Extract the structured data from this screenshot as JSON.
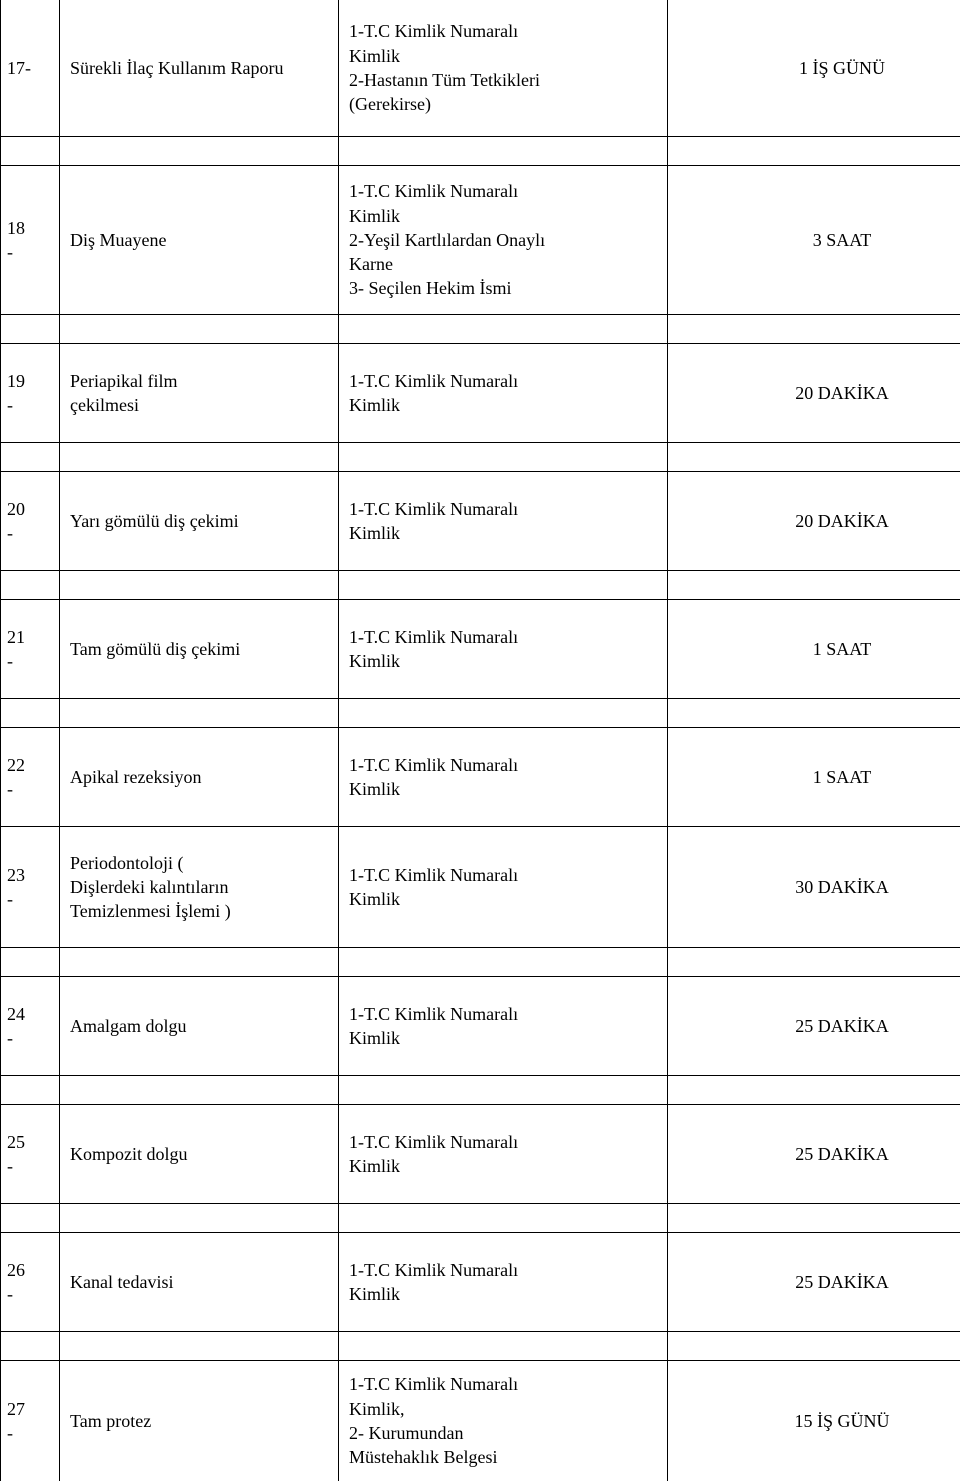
{
  "rows": [
    {
      "num": "17-",
      "name": "Sürekli İlaç Kullanım Raporu",
      "req": "1-T.C Kimlik Numaralı\nKimlik\n2-Hastanın Tüm Tetkikleri\n(Gerekirse)",
      "dur": "1 İŞ GÜNÜ",
      "height": "h-lg",
      "gap_after": true
    },
    {
      "num": "18\n-",
      "name": "Diş Muayene",
      "req": "1-T.C Kimlik Numaralı\nKimlik\n2-Yeşil Kartlılardan Onaylı\nKarne\n3- Seçilen Hekim İsmi",
      "dur": "3 SAAT",
      "height": "h-xl",
      "gap_after": true
    },
    {
      "num": "19\n-",
      "name": "Periapikal film\nçekilmesi",
      "req": "1-T.C Kimlik Numaralı\nKimlik",
      "dur": "20 DAKİKA",
      "height": "h-sm",
      "gap_after": true
    },
    {
      "num": "20\n-",
      "name": "Yarı gömülü diş çekimi",
      "req": "1-T.C Kimlik Numaralı\nKimlik",
      "dur": "20 DAKİKA",
      "height": "h-sm",
      "gap_after": true
    },
    {
      "num": "21\n-",
      "name": "Tam gömülü diş çekimi",
      "req": "1-T.C Kimlik Numaralı\nKimlik",
      "dur": "1  SAAT",
      "height": "h-sm",
      "gap_after": true
    },
    {
      "num": "22\n-",
      "name": "Apikal rezeksiyon",
      "req": "1-T.C Kimlik Numaralı\nKimlik",
      "dur": "1  SAAT",
      "height": "h-sm",
      "gap_after": false
    },
    {
      "num": "23\n-",
      "name": " Periodontoloji  (\nDişlerdeki kalıntıların\nTemizlenmesi İşlemi )",
      "req": "1-T.C Kimlik Numaralı\nKimlik",
      "dur": "30 DAKİKA",
      "height": "h-md",
      "gap_after": true
    },
    {
      "num": "24\n-",
      "name": "Amalgam dolgu",
      "req": "1-T.C Kimlik Numaralı\nKimlik",
      "dur": "25 DAKİKA",
      "height": "h-sm",
      "gap_after": true
    },
    {
      "num": "25\n-",
      "name": "Kompozit dolgu",
      "req": "1-T.C Kimlik Numaralı\nKimlik",
      "dur": "25 DAKİKA",
      "height": "h-sm",
      "gap_after": true
    },
    {
      "num": "26\n-",
      "name": "Kanal tedavisi",
      "req": "1-T.C Kimlik Numaralı\nKimlik",
      "dur": "25 DAKİKA",
      "height": "h-sm",
      "gap_after": true
    },
    {
      "num": "27\n-",
      "name": "Tam protez",
      "req": "1-T.C Kimlik Numaralı\nKimlik,\n2- Kurumundan\nMüstehaklık Belgesi",
      "dur": "15 İŞ GÜNÜ",
      "height": "h-md",
      "gap_after": false,
      "open_bottom": true
    }
  ]
}
